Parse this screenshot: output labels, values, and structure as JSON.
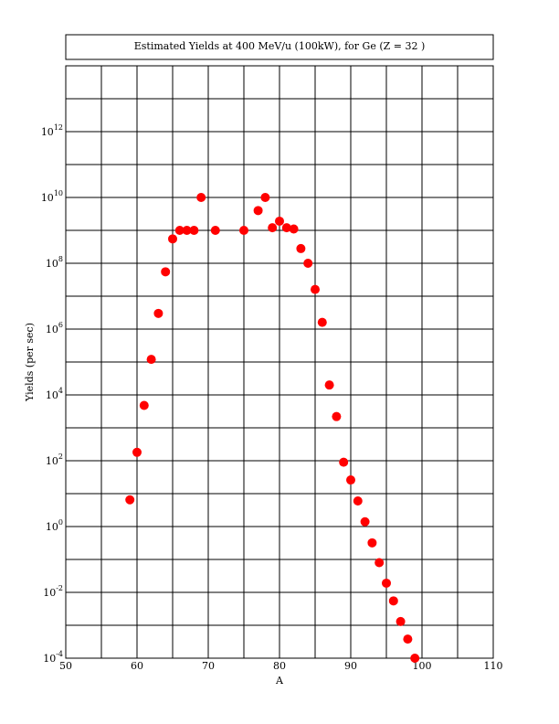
{
  "chart_data": {
    "type": "scatter",
    "title": "Estimated Yields at 400 MeV/u (100kW), for Ge (Z = 32 )",
    "xlabel": "A",
    "ylabel": "Yields (per sec)",
    "xlim": [
      50,
      110
    ],
    "ylim_log10": [
      -4,
      14
    ],
    "y_scale": "log",
    "grid": true,
    "marker_color": "#ff0000",
    "x_ticks": [
      "50",
      "60",
      "70",
      "80",
      "90",
      "100",
      "110"
    ],
    "y_ticks": [
      {
        "base": "10",
        "exp": "-4"
      },
      {
        "base": "10",
        "exp": "-2"
      },
      {
        "base": "10",
        "exp": "0"
      },
      {
        "base": "10",
        "exp": "2"
      },
      {
        "base": "10",
        "exp": "4"
      },
      {
        "base": "10",
        "exp": "6"
      },
      {
        "base": "10",
        "exp": "8"
      },
      {
        "base": "10",
        "exp": "10"
      },
      {
        "base": "10",
        "exp": "12"
      }
    ],
    "points": [
      {
        "x": 59,
        "y": 6.5
      },
      {
        "x": 60,
        "y": 180
      },
      {
        "x": 61,
        "y": 4800
      },
      {
        "x": 62,
        "y": 120000
      },
      {
        "x": 63,
        "y": 3000000
      },
      {
        "x": 64,
        "y": 55000000
      },
      {
        "x": 65,
        "y": 550000000
      },
      {
        "x": 66,
        "y": 1000000000
      },
      {
        "x": 67,
        "y": 1000000000
      },
      {
        "x": 68,
        "y": 1000000000
      },
      {
        "x": 69,
        "y": 10000000000
      },
      {
        "x": 71,
        "y": 1000000000
      },
      {
        "x": 75,
        "y": 1000000000
      },
      {
        "x": 77,
        "y": 4000000000
      },
      {
        "x": 78,
        "y": 10000000000
      },
      {
        "x": 79,
        "y": 1200000000
      },
      {
        "x": 80,
        "y": 1900000000
      },
      {
        "x": 81,
        "y": 1200000000
      },
      {
        "x": 82,
        "y": 1100000000
      },
      {
        "x": 83,
        "y": 280000000
      },
      {
        "x": 84,
        "y": 100000000
      },
      {
        "x": 85,
        "y": 16000000
      },
      {
        "x": 86,
        "y": 1600000
      },
      {
        "x": 87,
        "y": 20000
      },
      {
        "x": 88,
        "y": 2200
      },
      {
        "x": 89,
        "y": 90
      },
      {
        "x": 90,
        "y": 26
      },
      {
        "x": 91,
        "y": 6
      },
      {
        "x": 92,
        "y": 1.4
      },
      {
        "x": 93,
        "y": 0.32
      },
      {
        "x": 94,
        "y": 0.08
      },
      {
        "x": 95,
        "y": 0.019
      },
      {
        "x": 96,
        "y": 0.0055
      },
      {
        "x": 97,
        "y": 0.0013
      },
      {
        "x": 98,
        "y": 0.00038
      },
      {
        "x": 99,
        "y": 0.0001
      }
    ]
  }
}
